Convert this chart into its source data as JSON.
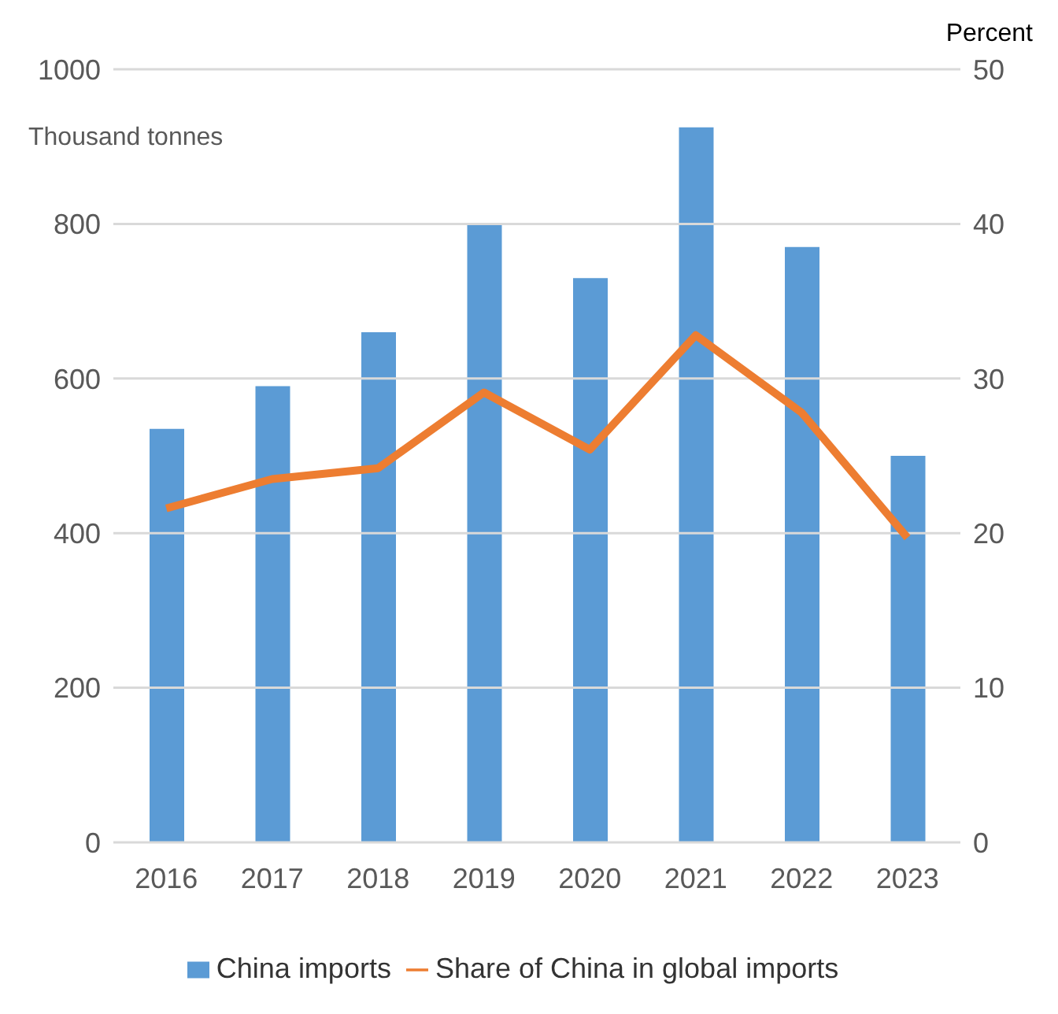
{
  "chart_data": {
    "type": "bar",
    "ylabel": "Thousand tonnes",
    "y2label": "Percent",
    "categories": [
      "2016",
      "2017",
      "2018",
      "2019",
      "2020",
      "2021",
      "2022",
      "2023"
    ],
    "series": [
      {
        "name": "China imports",
        "color": "#5b9bd5",
        "values": [
          535,
          590,
          660,
          800,
          730,
          925,
          770,
          500
        ]
      },
      {
        "name": "Share of China in global imports",
        "type": "line",
        "axis": "y2",
        "color": "#ed7d31",
        "values": [
          21.6,
          23.5,
          24.2,
          29.1,
          25.4,
          32.8,
          27.8,
          19.7
        ]
      }
    ],
    "ylim": [
      0,
      1000
    ],
    "yticks": [
      0,
      200,
      400,
      600,
      800,
      1000
    ],
    "y2lim": [
      0,
      50
    ],
    "y2ticks": [
      0,
      10,
      20,
      30,
      40,
      50
    ],
    "grid": "y",
    "legend": "bottom",
    "marker": "none"
  }
}
